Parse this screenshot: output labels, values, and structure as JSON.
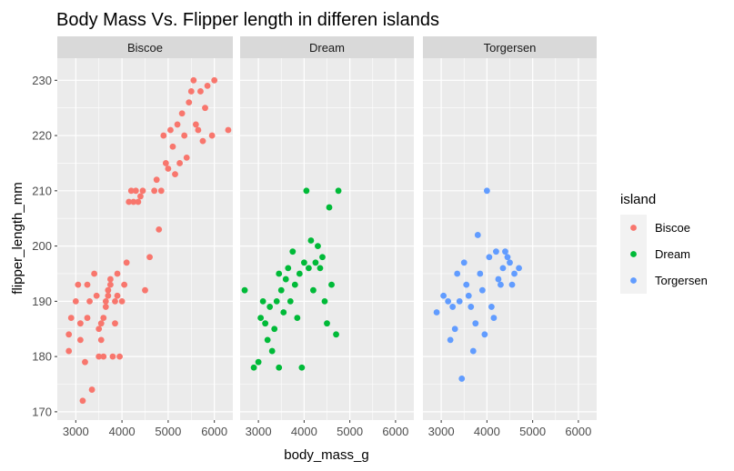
{
  "chart_data": {
    "type": "scatter",
    "title": "Body Mass Vs. Flipper length in differen islands",
    "xlabel": "body_mass_g",
    "ylabel": "flipper_length_mm",
    "xlim": [
      2600,
      6400
    ],
    "ylim": [
      168.5,
      234
    ],
    "x_ticks": [
      3000,
      4000,
      5000,
      6000
    ],
    "y_ticks": [
      170,
      180,
      190,
      200,
      210,
      220,
      230
    ],
    "grid": true,
    "facet_by": "island",
    "legend": {
      "title": "island",
      "position": "right"
    },
    "series": [
      {
        "name": "Biscoe",
        "color": "#F8766D",
        "points": [
          [
            2850,
            181
          ],
          [
            2850,
            184
          ],
          [
            2900,
            187
          ],
          [
            3000,
            190
          ],
          [
            3050,
            193
          ],
          [
            3100,
            183
          ],
          [
            3100,
            186
          ],
          [
            3150,
            172
          ],
          [
            3200,
            179
          ],
          [
            3250,
            187
          ],
          [
            3250,
            193
          ],
          [
            3300,
            190
          ],
          [
            3350,
            174
          ],
          [
            3400,
            195
          ],
          [
            3450,
            191
          ],
          [
            3500,
            180
          ],
          [
            3500,
            185
          ],
          [
            3550,
            183
          ],
          [
            3550,
            186
          ],
          [
            3600,
            180
          ],
          [
            3600,
            187
          ],
          [
            3650,
            189
          ],
          [
            3650,
            190
          ],
          [
            3700,
            191
          ],
          [
            3700,
            192
          ],
          [
            3750,
            193
          ],
          [
            3750,
            194
          ],
          [
            3800,
            180
          ],
          [
            3850,
            186
          ],
          [
            3850,
            190
          ],
          [
            3900,
            195
          ],
          [
            3900,
            191
          ],
          [
            3950,
            180
          ],
          [
            4000,
            190
          ],
          [
            4050,
            193
          ],
          [
            4100,
            197
          ],
          [
            4150,
            208
          ],
          [
            4200,
            210
          ],
          [
            4250,
            208
          ],
          [
            4300,
            210
          ],
          [
            4350,
            208
          ],
          [
            4400,
            209
          ],
          [
            4450,
            210
          ],
          [
            4500,
            192
          ],
          [
            4600,
            198
          ],
          [
            4700,
            210
          ],
          [
            4750,
            212
          ],
          [
            4800,
            203
          ],
          [
            4850,
            210
          ],
          [
            4900,
            220
          ],
          [
            4950,
            215
          ],
          [
            5000,
            214
          ],
          [
            5050,
            221
          ],
          [
            5100,
            218
          ],
          [
            5150,
            213
          ],
          [
            5200,
            222
          ],
          [
            5250,
            215
          ],
          [
            5300,
            224
          ],
          [
            5350,
            220
          ],
          [
            5400,
            216
          ],
          [
            5450,
            226
          ],
          [
            5500,
            228
          ],
          [
            5550,
            230
          ],
          [
            5600,
            222
          ],
          [
            5650,
            221
          ],
          [
            5700,
            228
          ],
          [
            5750,
            219
          ],
          [
            5800,
            225
          ],
          [
            5850,
            229
          ],
          [
            5950,
            220
          ],
          [
            6000,
            230
          ],
          [
            6300,
            221
          ]
        ]
      },
      {
        "name": "Dream",
        "color": "#00BA38",
        "points": [
          [
            2700,
            192
          ],
          [
            2900,
            178
          ],
          [
            3000,
            179
          ],
          [
            3050,
            187
          ],
          [
            3100,
            190
          ],
          [
            3150,
            186
          ],
          [
            3200,
            183
          ],
          [
            3250,
            189
          ],
          [
            3300,
            181
          ],
          [
            3350,
            185
          ],
          [
            3400,
            190
          ],
          [
            3450,
            195
          ],
          [
            3450,
            178
          ],
          [
            3500,
            192
          ],
          [
            3550,
            188
          ],
          [
            3600,
            194
          ],
          [
            3650,
            196
          ],
          [
            3700,
            190
          ],
          [
            3750,
            199
          ],
          [
            3800,
            193
          ],
          [
            3850,
            187
          ],
          [
            3900,
            195
          ],
          [
            3950,
            178
          ],
          [
            4000,
            197
          ],
          [
            4050,
            210
          ],
          [
            4100,
            196
          ],
          [
            4150,
            201
          ],
          [
            4200,
            192
          ],
          [
            4250,
            197
          ],
          [
            4300,
            200
          ],
          [
            4350,
            196
          ],
          [
            4400,
            198
          ],
          [
            4450,
            190
          ],
          [
            4500,
            186
          ],
          [
            4550,
            207
          ],
          [
            4600,
            193
          ],
          [
            4700,
            184
          ],
          [
            4750,
            210
          ]
        ]
      },
      {
        "name": "Torgersen",
        "color": "#619CFF",
        "points": [
          [
            2900,
            188
          ],
          [
            3050,
            191
          ],
          [
            3150,
            190
          ],
          [
            3200,
            183
          ],
          [
            3250,
            189
          ],
          [
            3300,
            185
          ],
          [
            3350,
            195
          ],
          [
            3400,
            190
          ],
          [
            3450,
            176
          ],
          [
            3500,
            197
          ],
          [
            3550,
            193
          ],
          [
            3600,
            191
          ],
          [
            3650,
            189
          ],
          [
            3700,
            181
          ],
          [
            3750,
            186
          ],
          [
            3800,
            202
          ],
          [
            3850,
            195
          ],
          [
            3900,
            192
          ],
          [
            3950,
            184
          ],
          [
            4000,
            210
          ],
          [
            4050,
            198
          ],
          [
            4100,
            189
          ],
          [
            4150,
            187
          ],
          [
            4200,
            199
          ],
          [
            4250,
            194
          ],
          [
            4300,
            193
          ],
          [
            4350,
            196
          ],
          [
            4400,
            199
          ],
          [
            4450,
            198
          ],
          [
            4500,
            197
          ],
          [
            4550,
            193
          ],
          [
            4600,
            195
          ],
          [
            4700,
            196
          ]
        ]
      }
    ]
  }
}
